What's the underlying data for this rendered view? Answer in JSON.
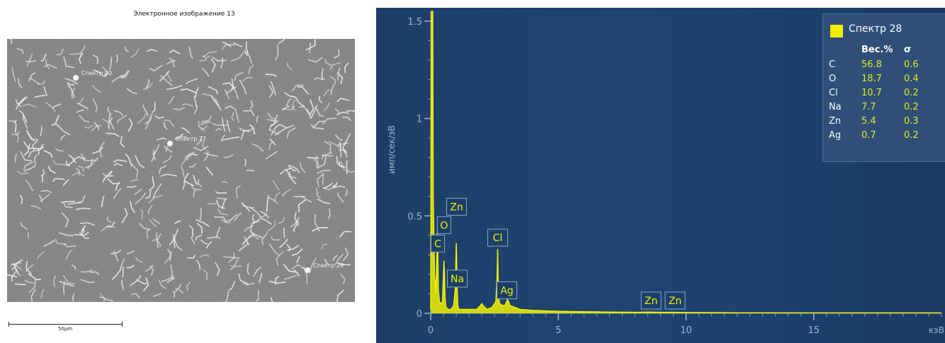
{
  "sem": {
    "title": "Электронное изображение 13",
    "scale_label": "50µm",
    "markers": [
      {
        "label": "Спектр 20"
      },
      {
        "label": "Спектр 27"
      },
      {
        "label": "Спектр 28"
      }
    ]
  },
  "chart_data": {
    "type": "line",
    "xlabel": "кэВ",
    "ylabel": "имп/сек/эВ",
    "xlim": [
      0,
      20
    ],
    "ylim": [
      0,
      1.55
    ],
    "x_ticks": [
      0,
      5,
      10,
      15
    ],
    "y_ticks": [
      0,
      0.5,
      1,
      1.5
    ],
    "y_tick_labels": [
      "0",
      "0.5",
      "1",
      "1.5"
    ],
    "grid": false,
    "legend_position": "top-right",
    "series": [
      {
        "name": "Спектр 28",
        "color": "#f0f000",
        "x": [
          0.0,
          0.03,
          0.08,
          0.1,
          0.15,
          0.2,
          0.24,
          0.26,
          0.28,
          0.3,
          0.34,
          0.4,
          0.46,
          0.5,
          0.52,
          0.54,
          0.56,
          0.6,
          0.7,
          0.8,
          0.9,
          0.96,
          1.0,
          1.04,
          1.06,
          1.1,
          1.2,
          1.4,
          1.6,
          1.8,
          1.95,
          2.0,
          2.05,
          2.2,
          2.4,
          2.55,
          2.6,
          2.62,
          2.64,
          2.66,
          2.7,
          2.8,
          2.9,
          2.98,
          3.0,
          3.05,
          3.1,
          3.3,
          3.5,
          4.0,
          5.0,
          6.0,
          7.0,
          8.0,
          8.6,
          9.0,
          9.6,
          10.0,
          12.0,
          15.0,
          20.0
        ],
        "y": [
          0.02,
          1.55,
          1.55,
          0.6,
          0.2,
          0.1,
          0.3,
          0.42,
          0.3,
          0.12,
          0.06,
          0.05,
          0.06,
          0.2,
          0.27,
          0.2,
          0.08,
          0.03,
          0.02,
          0.02,
          0.04,
          0.12,
          0.36,
          0.12,
          0.04,
          0.02,
          0.02,
          0.02,
          0.02,
          0.02,
          0.04,
          0.05,
          0.04,
          0.02,
          0.03,
          0.06,
          0.18,
          0.33,
          0.18,
          0.08,
          0.05,
          0.04,
          0.04,
          0.06,
          0.07,
          0.06,
          0.04,
          0.03,
          0.02,
          0.015,
          0.01,
          0.008,
          0.006,
          0.005,
          0.006,
          0.005,
          0.005,
          0.004,
          0.003,
          0.002,
          0.002
        ]
      }
    ],
    "peak_labels": [
      {
        "label": "C",
        "x": 0.277
      },
      {
        "label": "O",
        "x": 0.525
      },
      {
        "label": "Zn",
        "x": 1.012
      },
      {
        "label": "Na",
        "x": 1.041
      },
      {
        "label": "Cl",
        "x": 2.622
      },
      {
        "label": "Ag",
        "x": 2.984
      },
      {
        "label": "Zn",
        "x": 8.63
      },
      {
        "label": "Zn",
        "x": 9.57
      }
    ],
    "composition": {
      "headers": [
        "",
        "Вес.%",
        "σ"
      ],
      "rows": [
        {
          "element": "C",
          "weight": "56.8",
          "sigma": "0.6"
        },
        {
          "element": "O",
          "weight": "18.7",
          "sigma": "0.4"
        },
        {
          "element": "Cl",
          "weight": "10.7",
          "sigma": "0.2"
        },
        {
          "element": "Na",
          "weight": "7.7",
          "sigma": "0.2"
        },
        {
          "element": "Zn",
          "weight": "5.4",
          "sigma": "0.3"
        },
        {
          "element": "Ag",
          "weight": "0.7",
          "sigma": "0.2"
        }
      ]
    }
  }
}
